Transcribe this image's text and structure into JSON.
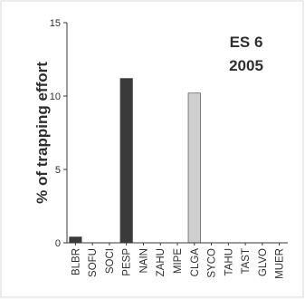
{
  "chart_data": {
    "type": "bar",
    "title": "",
    "xlabel": "",
    "ylabel": "% of trapping effort",
    "ylim": [
      0,
      15
    ],
    "yticks": [
      0,
      5,
      10,
      15
    ],
    "ytick_labels": [
      "0",
      "5",
      "10",
      "15"
    ],
    "grid": false,
    "categories": [
      "BLBR",
      "SOFU",
      "SOCI",
      "PESP",
      "NAIN",
      "ZAHU",
      "MIPE",
      "CLGA",
      "SYCO",
      "TAHU",
      "TAST",
      "GLVO",
      "MUER"
    ],
    "values": [
      0.4,
      0,
      0,
      11.2,
      0,
      0,
      0,
      10.2,
      0,
      0,
      0,
      0,
      0
    ],
    "bar_colors": [
      "#3a3a3a",
      "#3a3a3a",
      "#3a3a3a",
      "#3a3a3a",
      "#3a3a3a",
      "#3a3a3a",
      "#3a3a3a",
      "#cfcfcf",
      "#3a3a3a",
      "#3a3a3a",
      "#3a3a3a",
      "#3a3a3a",
      "#3a3a3a"
    ],
    "annotation_lines": [
      "ES 6",
      "2005"
    ]
  }
}
